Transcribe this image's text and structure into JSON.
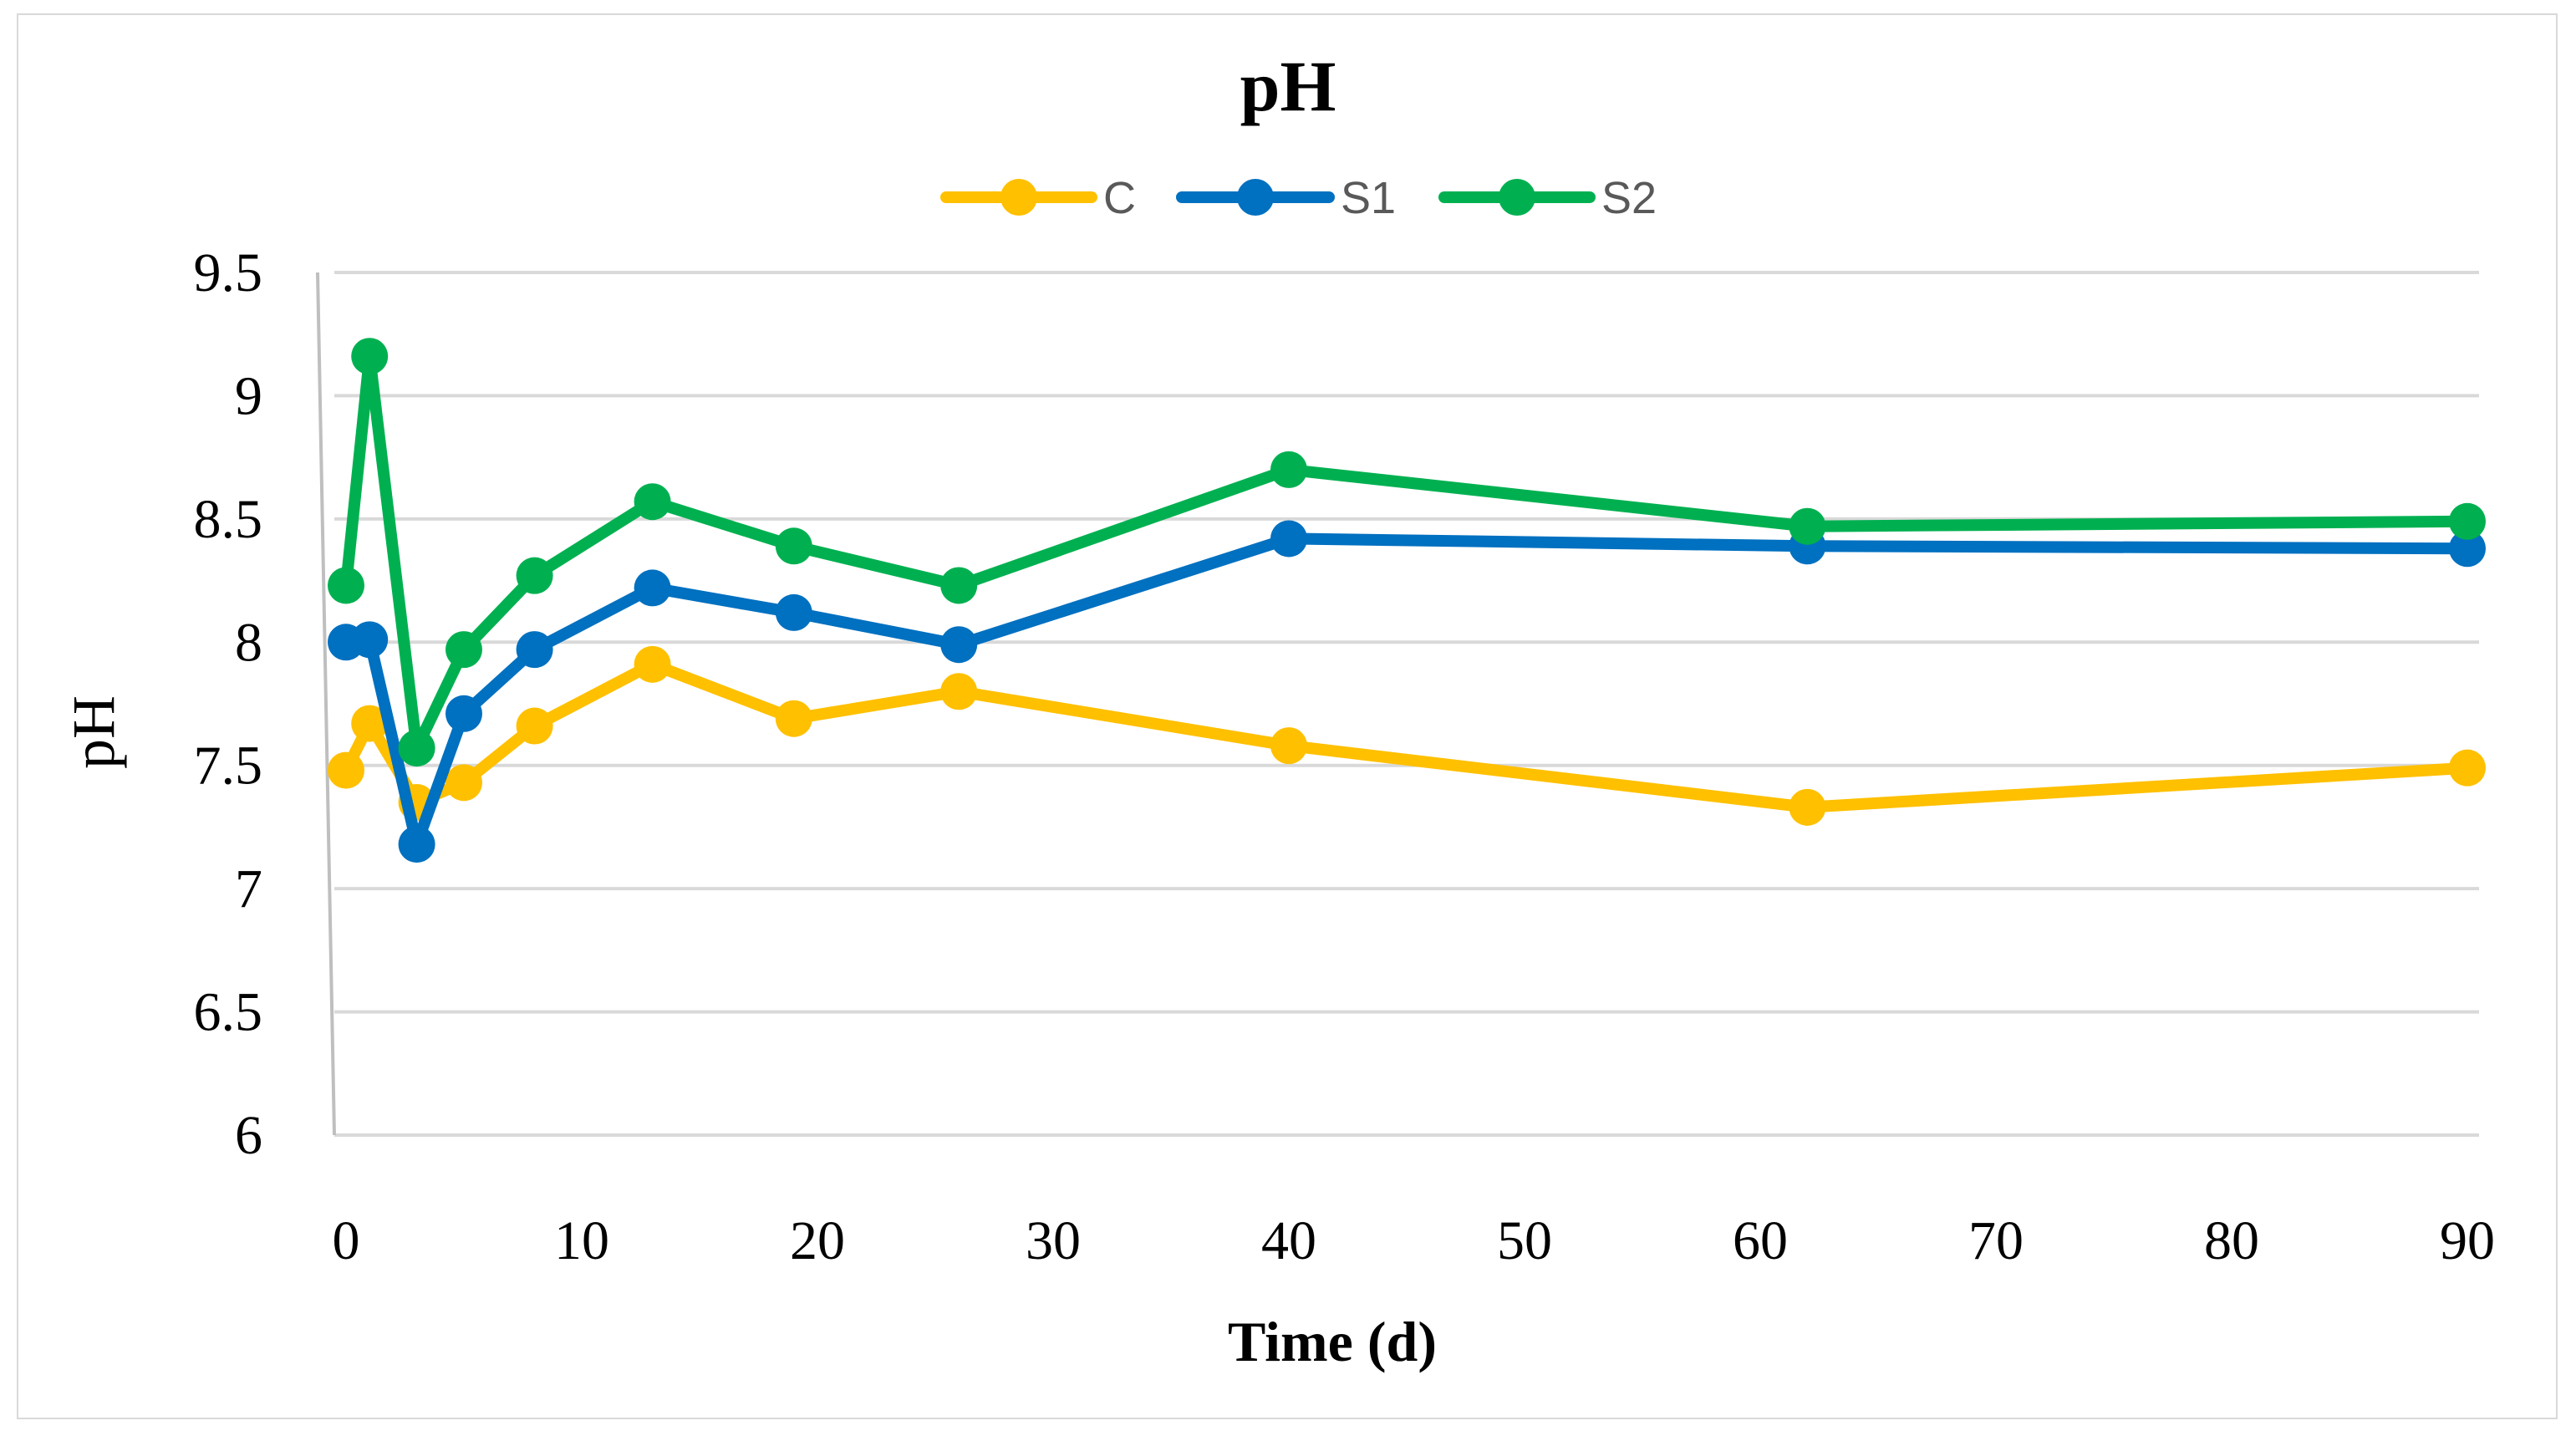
{
  "chart_data": {
    "type": "line",
    "title": "pH",
    "xlabel": "Time (d)",
    "ylabel": "pH",
    "xlim": [
      0,
      90
    ],
    "ylim": [
      6,
      9.5
    ],
    "x_ticks": [
      0,
      10,
      20,
      30,
      40,
      50,
      60,
      70,
      80,
      90
    ],
    "y_ticks": [
      6,
      6.5,
      7,
      7.5,
      8,
      8.5,
      9,
      9.5
    ],
    "y_tick_labels": [
      "6",
      "6.5",
      "7",
      "7.5",
      "8",
      "8.5",
      "9",
      "9.5"
    ],
    "grid": "horizontal",
    "legend": "top-center",
    "x": [
      0,
      1,
      3,
      5,
      8,
      13,
      19,
      26,
      40,
      62,
      90
    ],
    "series": [
      {
        "name": "C",
        "color": "#ffc000",
        "values": [
          7.48,
          7.67,
          7.35,
          7.43,
          7.66,
          7.91,
          7.69,
          7.8,
          7.58,
          7.33,
          7.49
        ]
      },
      {
        "name": "S1",
        "color": "#0070c0",
        "values": [
          8.0,
          8.01,
          7.18,
          7.71,
          7.97,
          8.22,
          8.12,
          7.99,
          8.42,
          8.39,
          8.38
        ]
      },
      {
        "name": "S2",
        "color": "#00b050",
        "values": [
          8.23,
          9.16,
          7.57,
          7.97,
          8.27,
          8.57,
          8.39,
          8.23,
          8.7,
          8.47,
          8.49
        ]
      }
    ]
  }
}
